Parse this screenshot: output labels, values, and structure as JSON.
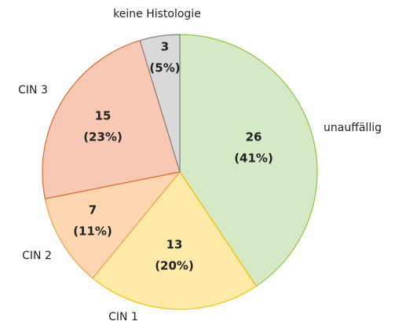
{
  "chart_data": {
    "type": "pie",
    "categories": [
      "unauffällig",
      "CIN 1",
      "CIN 2",
      "CIN 3",
      "keine Histologie"
    ],
    "values": [
      26,
      13,
      7,
      15,
      3
    ],
    "percent_labels": [
      "(41%)",
      "(20%)",
      "(11%)",
      "(23%)",
      "(5%)"
    ],
    "colors": [
      "#d6e9c6",
      "#feeaa8",
      "#fdd7b1",
      "#f7c9b4",
      "#d9d9d9"
    ],
    "edge_colors": [
      "#8dc63f",
      "#f2c200",
      "#f0a040",
      "#e0682e",
      "#808080"
    ]
  }
}
